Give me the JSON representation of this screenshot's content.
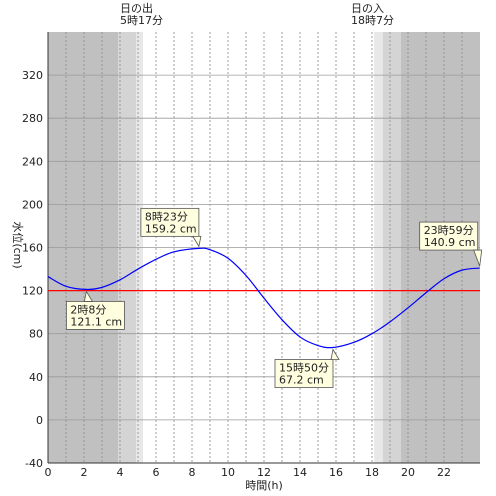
{
  "chart_data": {
    "type": "line",
    "xlabel": "時間(h)",
    "ylabel": "水位(cm)",
    "xlim": [
      0,
      24
    ],
    "ylim": [
      -40,
      360
    ],
    "x_ticks": [
      0,
      2,
      4,
      6,
      8,
      10,
      12,
      14,
      16,
      18,
      20,
      22
    ],
    "y_ticks": [
      -40,
      0,
      40,
      80,
      120,
      160,
      200,
      240,
      280,
      320
    ],
    "grid": true,
    "reference_line": {
      "value": 120,
      "color": "#ff0000"
    },
    "sunrise": {
      "title": "日の出",
      "time_label": "5時17分",
      "hour": 5.283
    },
    "sunset": {
      "title": "日の入",
      "time_label": "18時7分",
      "hour": 18.117
    },
    "night_shading": [
      {
        "from": 0,
        "to": 3.9,
        "shade": "#c0c0c0"
      },
      {
        "from": 3.9,
        "to": 4.9,
        "shade": "#d4d4d4"
      },
      {
        "from": 4.9,
        "to": 5.28,
        "shade": "#e8e8e8"
      },
      {
        "from": 18.12,
        "to": 18.6,
        "shade": "#e8e8e8"
      },
      {
        "from": 18.6,
        "to": 19.6,
        "shade": "#d4d4d4"
      },
      {
        "from": 19.6,
        "to": 24,
        "shade": "#c0c0c0"
      }
    ],
    "series": [
      {
        "color": "#0000ff",
        "x": [
          0,
          1,
          2.133,
          3,
          4,
          5,
          6,
          7,
          8.383,
          9,
          10,
          11,
          12,
          13,
          14,
          15,
          15.833,
          17,
          18,
          19,
          20,
          21,
          22,
          23,
          23.983
        ],
        "y": [
          133,
          124,
          121.1,
          123,
          130,
          140,
          149,
          156,
          159.2,
          158,
          150,
          134,
          113,
          93,
          77,
          69,
          67.2,
          72,
          80,
          91,
          104,
          118,
          131,
          139,
          140.9
        ]
      }
    ],
    "annotations": [
      {
        "x": 2.133,
        "y": 121.1,
        "time": "2時8分",
        "level": "121.1 cm"
      },
      {
        "x": 8.383,
        "y": 159.2,
        "time": "8時23分",
        "level": "159.2 cm"
      },
      {
        "x": 15.833,
        "y": 67.2,
        "time": "15時50分",
        "level": "67.2 cm"
      },
      {
        "x": 23.983,
        "y": 140.9,
        "time": "23時59分",
        "level": "140.9 cm"
      }
    ]
  }
}
